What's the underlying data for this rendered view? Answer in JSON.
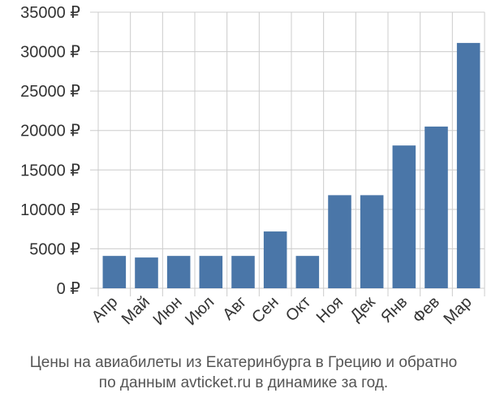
{
  "chart_data": {
    "type": "bar",
    "categories": [
      "Апр",
      "Май",
      "Июн",
      "Июл",
      "Авг",
      "Сен",
      "Окт",
      "Ноя",
      "Дек",
      "Янв",
      "Фев",
      "Мар"
    ],
    "values": [
      4100,
      3900,
      4100,
      4100,
      4100,
      7200,
      4100,
      11800,
      11800,
      18100,
      20500,
      31100
    ],
    "ylim": [
      0,
      35000
    ],
    "yticks": [
      0,
      5000,
      10000,
      15000,
      20000,
      25000,
      30000,
      35000
    ],
    "ytick_labels": [
      "0 ₽",
      "5000 ₽",
      "10000 ₽",
      "15000 ₽",
      "20000 ₽",
      "25000 ₽",
      "30000 ₽",
      "35000 ₽"
    ],
    "grid": true,
    "bar_color": "#4a76a8",
    "grid_color": "#cccccc"
  },
  "caption": {
    "line1": "Цены на авиабилеты из Екатеринбурга в Грецию и обратно",
    "line2": "по данным avticket.ru в динамике за год."
  }
}
